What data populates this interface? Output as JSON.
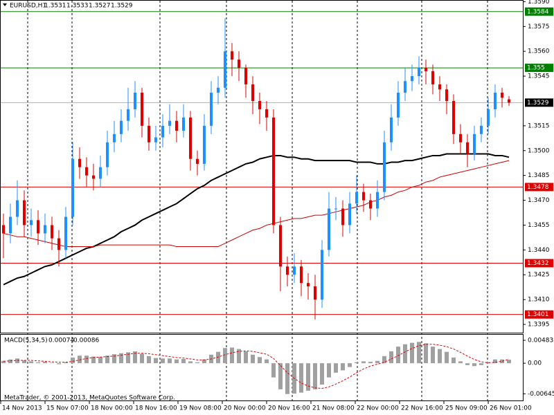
{
  "chart_data": {
    "type": "candlestick",
    "symbol": "EURUSD,H1",
    "bull_color": "#1e90ff",
    "bear_color": "#e00000",
    "ylim": [
      1.339,
      1.3591
    ],
    "yticks": [
      {
        "value": 1.359,
        "label": "1.3590"
      },
      {
        "value": 1.3575,
        "label": "1.3575"
      },
      {
        "value": 1.356,
        "label": "1.3560"
      },
      {
        "value": 1.3545,
        "label": "1.3545"
      },
      {
        "value": 1.3515,
        "label": "1.3515"
      },
      {
        "value": 1.35,
        "label": "1.3500"
      },
      {
        "value": 1.3485,
        "label": "1.3485"
      },
      {
        "value": 1.347,
        "label": "1.3470"
      },
      {
        "value": 1.3455,
        "label": "1.3455"
      },
      {
        "value": 1.344,
        "label": "1.3440"
      },
      {
        "value": 1.3425,
        "label": "1.3425"
      },
      {
        "value": 1.341,
        "label": "1.3410"
      },
      {
        "value": 1.3395,
        "label": "1.3395"
      }
    ],
    "x_labels": [
      "14 Nov 2013",
      "15 Nov 07:00",
      "18 Nov 00:00",
      "18 Nov 16:00",
      "19 Nov 08:00",
      "20 Nov 00:00",
      "20 Nov 16:00",
      "21 Nov 08:00",
      "22 Nov 00:00",
      "22 Nov 16:00",
      "25 Nov 09:00",
      "26 Nov 01:00"
    ],
    "open": [
      1.3455,
      1.345,
      1.346,
      1.347,
      1.3455,
      1.3458,
      1.345,
      1.3455,
      1.3447,
      1.344,
      1.346,
      1.3495,
      1.349,
      1.3485,
      1.3483,
      1.349,
      1.3505,
      1.351,
      1.3518,
      1.3525,
      1.3535,
      1.3515,
      1.3505,
      1.3508,
      1.3515,
      1.3518,
      1.3512,
      1.352,
      1.3495,
      1.3492,
      1.3515,
      1.3535,
      1.3538,
      1.356,
      1.3555,
      1.355,
      1.354,
      1.353,
      1.3525,
      1.352,
      1.3455,
      1.343,
      1.3425,
      1.343,
      1.342,
      1.3418,
      1.341,
      1.344,
      1.3465,
      1.3465,
      1.3455,
      1.3468,
      1.3475,
      1.347,
      1.3465,
      1.3475,
      1.3505,
      1.352,
      1.3535,
      1.3542,
      1.3545,
      1.355,
      1.3548,
      1.354,
      1.3537,
      1.353,
      1.351,
      1.3505,
      1.3498,
      1.351,
      1.3515,
      1.3525,
      1.3535,
      1.3531
    ],
    "high": [
      1.3462,
      1.3468,
      1.3482,
      1.3476,
      1.3465,
      1.3464,
      1.3462,
      1.346,
      1.3452,
      1.3466,
      1.3505,
      1.3502,
      1.3496,
      1.3492,
      1.3497,
      1.3512,
      1.3518,
      1.3525,
      1.3538,
      1.3542,
      1.3538,
      1.352,
      1.3515,
      1.3522,
      1.3528,
      1.3524,
      1.3528,
      1.3524,
      1.35,
      1.3522,
      1.3542,
      1.3545,
      1.358,
      1.3565,
      1.356,
      1.3552,
      1.3545,
      1.3535,
      1.353,
      1.3525,
      1.346,
      1.3436,
      1.3438,
      1.3434,
      1.3426,
      1.3425,
      1.3446,
      1.3475,
      1.3472,
      1.347,
      1.3475,
      1.3485,
      1.348,
      1.3474,
      1.3482,
      1.3512,
      1.3528,
      1.3542,
      1.355,
      1.3552,
      1.3557,
      1.3555,
      1.3552,
      1.3545,
      1.354,
      1.3534,
      1.3516,
      1.351,
      1.3515,
      1.352,
      1.3532,
      1.354,
      1.3538,
      1.3533
    ],
    "low": [
      1.3435,
      1.3444,
      1.3455,
      1.3448,
      1.3448,
      1.3443,
      1.3444,
      1.344,
      1.343,
      1.3435,
      1.3455,
      1.3483,
      1.3478,
      1.3476,
      1.3478,
      1.3485,
      1.3499,
      1.3505,
      1.3512,
      1.352,
      1.3508,
      1.35,
      1.35,
      1.3502,
      1.351,
      1.3505,
      1.3508,
      1.3488,
      1.3485,
      1.3488,
      1.351,
      1.3528,
      1.3532,
      1.3545,
      1.3542,
      1.3532,
      1.3522,
      1.3516,
      1.3512,
      1.345,
      1.3415,
      1.3418,
      1.342,
      1.3412,
      1.341,
      1.3398,
      1.3405,
      1.3436,
      1.3458,
      1.3448,
      1.345,
      1.3462,
      1.3463,
      1.3458,
      1.346,
      1.347,
      1.35,
      1.3515,
      1.353,
      1.3536,
      1.354,
      1.354,
      1.3534,
      1.353,
      1.3522,
      1.3504,
      1.3498,
      1.349,
      1.3494,
      1.3505,
      1.351,
      1.352,
      1.3526,
      1.3527
    ],
    "close": [
      1.345,
      1.346,
      1.347,
      1.3455,
      1.3458,
      1.345,
      1.3455,
      1.3447,
      1.344,
      1.346,
      1.3495,
      1.349,
      1.3485,
      1.3483,
      1.349,
      1.3505,
      1.351,
      1.3518,
      1.3525,
      1.3535,
      1.3515,
      1.3505,
      1.3508,
      1.3515,
      1.3518,
      1.3512,
      1.352,
      1.3495,
      1.3492,
      1.3515,
      1.3535,
      1.3538,
      1.356,
      1.3555,
      1.355,
      1.354,
      1.353,
      1.3525,
      1.352,
      1.3455,
      1.343,
      1.3425,
      1.343,
      1.342,
      1.3418,
      1.341,
      1.344,
      1.3465,
      1.3465,
      1.3455,
      1.3468,
      1.3475,
      1.347,
      1.3465,
      1.3475,
      1.3505,
      1.352,
      1.3535,
      1.3542,
      1.3545,
      1.355,
      1.3548,
      1.354,
      1.3537,
      1.353,
      1.351,
      1.3505,
      1.3498,
      1.351,
      1.3515,
      1.3525,
      1.3535,
      1.3532,
      1.3529
    ],
    "ma": [
      {
        "color": "#000000",
        "width": 2,
        "values": [
          1.3419,
          1.3421,
          1.3423,
          1.3424,
          1.3426,
          1.3428,
          1.343,
          1.3431,
          1.3433,
          1.3435,
          1.3437,
          1.3439,
          1.3441,
          1.3442,
          1.3444,
          1.3446,
          1.3448,
          1.3451,
          1.3453,
          1.3455,
          1.3458,
          1.346,
          1.3462,
          1.3464,
          1.3466,
          1.3468,
          1.3471,
          1.3474,
          1.3477,
          1.3479,
          1.3482,
          1.3484,
          1.3486,
          1.3488,
          1.349,
          1.3492,
          1.3493,
          1.3495,
          1.3496,
          1.3497,
          1.3497,
          1.3496,
          1.3496,
          1.3495,
          1.3495,
          1.3494,
          1.3494,
          1.3494,
          1.3494,
          1.3494,
          1.3494,
          1.3493,
          1.3493,
          1.3493,
          1.3492,
          1.3492,
          1.3493,
          1.3493,
          1.3494,
          1.3494,
          1.3495,
          1.3496,
          1.3497,
          1.3497,
          1.3498,
          1.3498,
          1.3498,
          1.3498,
          1.3498,
          1.3498,
          1.3498,
          1.3497,
          1.3497,
          1.3496
        ]
      },
      {
        "color": "#cc0000",
        "width": 1,
        "values": [
          1.345,
          1.3449,
          1.3448,
          1.3448,
          1.3447,
          1.3446,
          1.3445,
          1.3444,
          1.3443,
          1.3442,
          1.3442,
          1.3442,
          1.3442,
          1.3442,
          1.3443,
          1.3443,
          1.3443,
          1.3443,
          1.3443,
          1.3443,
          1.3443,
          1.3443,
          1.3443,
          1.3443,
          1.3443,
          1.3442,
          1.3442,
          1.3442,
          1.3442,
          1.3442,
          1.3442,
          1.3442,
          1.3444,
          1.3446,
          1.3448,
          1.345,
          1.3452,
          1.3453,
          1.3455,
          1.3456,
          1.3457,
          1.3458,
          1.3459,
          1.3459,
          1.346,
          1.3461,
          1.3461,
          1.3462,
          1.3463,
          1.3464,
          1.3465,
          1.3466,
          1.3467,
          1.3469,
          1.347,
          1.3472,
          1.3473,
          1.3475,
          1.3476,
          1.3478,
          1.3479,
          1.3481,
          1.3482,
          1.3484,
          1.3485,
          1.3486,
          1.3487,
          1.3488,
          1.3489,
          1.349,
          1.3491,
          1.3492,
          1.3493,
          1.3494
        ]
      }
    ],
    "levels": [
      {
        "value": 1.3584,
        "line_color": "#008000",
        "box_color": "#008000"
      },
      {
        "value": 1.355,
        "line_color": "#008000",
        "box_color": "#008000"
      },
      {
        "value": 1.3529,
        "line_color": "#b0b0b0",
        "box_color": "#000000"
      },
      {
        "value": 1.3478,
        "line_color": "#e00000",
        "box_color": "#e00000"
      },
      {
        "value": 1.3432,
        "line_color": "#e00000",
        "box_color": "#e00000"
      },
      {
        "value": 1.3401,
        "line_color": "#e00000",
        "box_color": "#e00000"
      }
    ],
    "macd": {
      "title": "MACD(5,34,5)",
      "ylim": [
        -0.008,
        0.006
      ],
      "yticks": [
        0.00483,
        {
          "value": 0,
          "label": "0.00"
        },
        -0.00645
      ],
      "hist_color": "#a0a0a0",
      "signal_color": "#e00000",
      "hist": [
        0.0005,
        0.0008,
        0.001,
        0.0006,
        0.0004,
        0.0002,
        0.0003,
        0.0001,
        -0.0002,
        0.0002,
        0.0012,
        0.0016,
        0.0016,
        0.0014,
        0.0013,
        0.0016,
        0.0019,
        0.0021,
        0.0023,
        0.0025,
        0.002,
        0.0015,
        0.0011,
        0.001,
        0.001,
        0.0008,
        0.0009,
        0.0004,
        0.0002,
        0.0008,
        0.0018,
        0.0024,
        0.0032,
        0.0033,
        0.003,
        0.0025,
        0.0018,
        0.0013,
        0.0008,
        -0.003,
        -0.0055,
        -0.0065,
        -0.0064,
        -0.0062,
        -0.0058,
        -0.0055,
        -0.0045,
        -0.003,
        -0.002,
        -0.0015,
        -0.0008,
        0.0002,
        0.0004,
        0.0003,
        0.0005,
        0.0015,
        0.0025,
        0.0035,
        0.004,
        0.0043,
        0.0045,
        0.0042,
        0.0035,
        0.003,
        0.0024,
        0.0012,
        0.0004,
        -0.0004,
        -0.0006,
        -0.0004,
        0.0002,
        0.0008,
        0.0008,
        0.00074
      ],
      "signal": [
        0.0004,
        0.0005,
        0.0006,
        0.0006,
        0.0006,
        0.0005,
        0.0004,
        0.0003,
        0.0002,
        0.0002,
        0.0004,
        0.0007,
        0.001,
        0.0012,
        0.0013,
        0.0014,
        0.0015,
        0.0017,
        0.0019,
        0.0021,
        0.0021,
        0.002,
        0.0018,
        0.0016,
        0.0014,
        0.0012,
        0.0011,
        0.0009,
        0.0007,
        0.0007,
        0.0009,
        0.0013,
        0.0018,
        0.0022,
        0.0025,
        0.0026,
        0.0025,
        0.0022,
        0.0019,
        0.001,
        -0.0005,
        -0.002,
        -0.0032,
        -0.0042,
        -0.0048,
        -0.0052,
        -0.0053,
        -0.005,
        -0.0044,
        -0.0037,
        -0.0029,
        -0.002,
        -0.0012,
        -0.0006,
        -0.0002,
        0.0002,
        0.0009,
        0.0016,
        0.0024,
        0.0031,
        0.0037,
        0.004,
        0.004,
        0.0038,
        0.0035,
        0.003,
        0.0023,
        0.0015,
        0.0008,
        0.0003,
        0.0001,
        0.0002,
        0.0004,
        0.00086
      ]
    },
    "footer": "MetaTrader, © 2001-2013, MetaQuotes Software Corp."
  }
}
